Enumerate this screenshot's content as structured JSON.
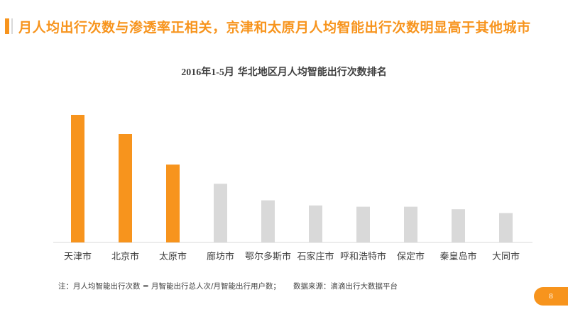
{
  "slide": {
    "headline": "月人均出行次数与渗透率正相关，京津和太原月人均智能出行次数明显高于其他城市",
    "page_number": "8",
    "accent_color": "#f7941d",
    "muted_bar_color": "#d9d9d9"
  },
  "chart_title": {
    "year_range": "2016年1-5月",
    "text": "华北地区月人均智能出行次数排名"
  },
  "footnote": {
    "note": "注：月人均智能出行次数 = 月智能出行总人次/月智能出行用户数；",
    "source": "数据来源：滴滴出行大数据平台"
  },
  "chart_data": {
    "type": "bar",
    "title": "2016年1-5月 华北地区月人均智能出行次数排名",
    "categories": [
      "天津市",
      "北京市",
      "太原市",
      "廊坊市",
      "鄂尔多斯市",
      "石家庄市",
      "呼和浩特市",
      "保定市",
      "秦皇岛市",
      "大同市"
    ],
    "values": [
      100,
      85,
      61,
      46,
      33,
      29,
      28,
      28,
      26,
      23
    ],
    "highlighted": [
      true,
      true,
      true,
      false,
      false,
      false,
      false,
      false,
      false,
      false
    ],
    "colors": {
      "highlight": "#f7941d",
      "default": "#d9d9d9"
    },
    "ylim": [
      0,
      100
    ],
    "grid": false,
    "xlabel": "",
    "ylabel": ""
  }
}
